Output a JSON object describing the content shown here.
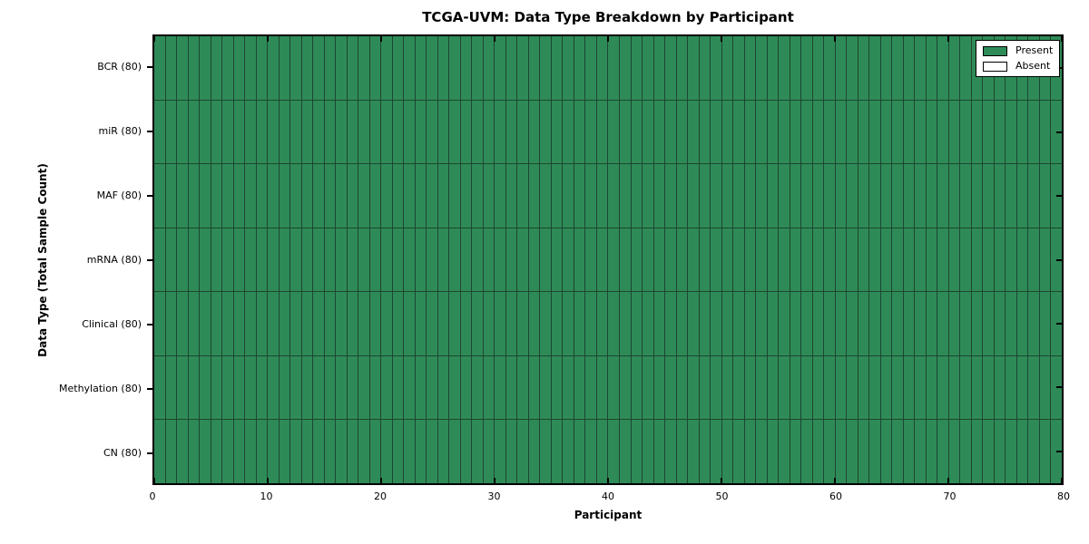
{
  "chart_data": {
    "type": "heatmap",
    "title": "TCGA-UVM: Data Type Breakdown by Participant",
    "xlabel": "Participant",
    "ylabel": "Data Type (Total Sample Count)",
    "xlim": [
      0,
      80
    ],
    "x_ticks": [
      0,
      10,
      20,
      30,
      40,
      50,
      60,
      70,
      80
    ],
    "n_participants": 80,
    "rows": [
      {
        "label": "BCR (80)",
        "total": 80,
        "present_count": 80
      },
      {
        "label": "miR (80)",
        "total": 80,
        "present_count": 80
      },
      {
        "label": "MAF (80)",
        "total": 80,
        "present_count": 80
      },
      {
        "label": "mRNA (80)",
        "total": 80,
        "present_count": 80
      },
      {
        "label": "Clinical (80)",
        "total": 80,
        "present_count": 80
      },
      {
        "label": "Methylation (80)",
        "total": 80,
        "present_count": 80
      },
      {
        "label": "CN (80)",
        "total": 80,
        "present_count": 80
      }
    ],
    "legend": {
      "position": "upper right",
      "entries": [
        {
          "label": "Present",
          "color": "#2e8b57"
        },
        {
          "label": "Absent",
          "color": "#ffffff"
        }
      ]
    },
    "colors": {
      "present": "#2e8b57",
      "absent": "#ffffff",
      "cell_edge": "#1e4630",
      "frame": "#000000",
      "background": "#ffffff"
    }
  }
}
